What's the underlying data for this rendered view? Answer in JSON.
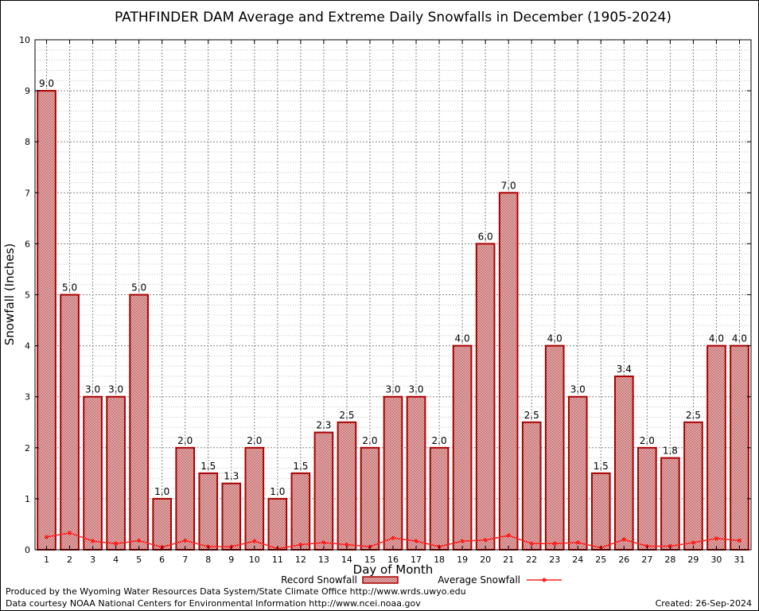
{
  "chart_data": {
    "type": "bar",
    "title": "PATHFINDER DAM Average and Extreme Daily Snowfalls in December (1905-2024)",
    "xlabel": "Day of Month",
    "ylabel": "Snowfall (Inches)",
    "ylim": [
      0,
      10
    ],
    "yticks": [
      "0",
      "1",
      "2",
      "3",
      "4",
      "5",
      "6",
      "7",
      "8",
      "9",
      "10"
    ],
    "grid": true,
    "legend_position": "bottom",
    "categories": [
      "1",
      "2",
      "3",
      "4",
      "5",
      "6",
      "7",
      "8",
      "9",
      "10",
      "11",
      "12",
      "13",
      "14",
      "15",
      "16",
      "17",
      "18",
      "19",
      "20",
      "21",
      "22",
      "23",
      "24",
      "25",
      "26",
      "27",
      "28",
      "29",
      "30",
      "31"
    ],
    "series": [
      {
        "name": "Record Snowfall",
        "type": "bar",
        "color": "#aa0000",
        "values": [
          9.0,
          5.0,
          3.0,
          3.0,
          5.0,
          1.0,
          2.0,
          1.5,
          1.3,
          2.0,
          1.0,
          1.5,
          2.3,
          2.5,
          2.0,
          3.0,
          3.0,
          2.0,
          4.0,
          6.0,
          7.0,
          2.5,
          4.0,
          3.0,
          1.5,
          3.4,
          2.0,
          1.8,
          2.5,
          4.0,
          4.0
        ],
        "labels": [
          "9.0",
          "5.0",
          "3.0",
          "3.0",
          "5.0",
          "1.0",
          "2.0",
          "1.5",
          "1.3",
          "2.0",
          "1.0",
          "1.5",
          "2.3",
          "2.5",
          "2.0",
          "3.0",
          "3.0",
          "2.0",
          "4.0",
          "6.0",
          "7.0",
          "2.5",
          "4.0",
          "3.0",
          "1.5",
          "3.4",
          "2.0",
          "1.8",
          "2.5",
          "4.0",
          "4.0"
        ]
      },
      {
        "name": "Average Snowfall",
        "type": "line",
        "color": "#ff2020",
        "values": [
          0.25,
          0.33,
          0.17,
          0.12,
          0.18,
          0.05,
          0.18,
          0.06,
          0.06,
          0.17,
          0.02,
          0.1,
          0.14,
          0.1,
          0.06,
          0.23,
          0.17,
          0.06,
          0.17,
          0.19,
          0.28,
          0.12,
          0.12,
          0.14,
          0.04,
          0.2,
          0.07,
          0.07,
          0.14,
          0.22,
          0.18
        ]
      }
    ]
  },
  "footer": {
    "credit": "Produced by the Wyoming Water Resources Data System/State Climate Office http://www.wrds.uwyo.edu",
    "source": "Data courtesy NOAA National Centers for Environmental Information http://www.ncei.noaa.gov",
    "created": "Created:  26-Sep-2024"
  }
}
